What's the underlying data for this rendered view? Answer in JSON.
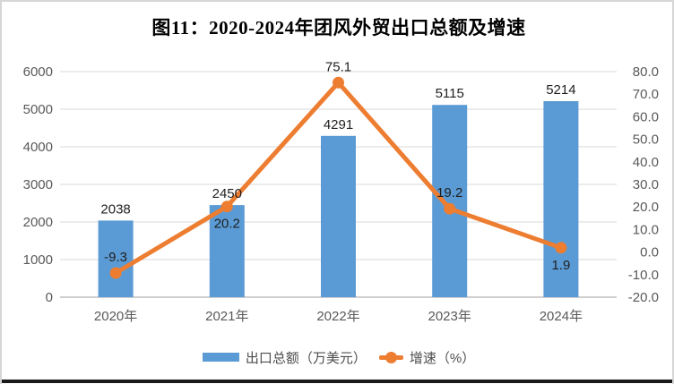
{
  "title": "图11：2020-2024年团风外贸出口总额及增速",
  "chart_data": {
    "type": "bar",
    "subtype": "combo bar+line, dual y-axis",
    "title": "图11：2020-2024年团风外贸出口总额及增速",
    "categories": [
      "2020年",
      "2021年",
      "2022年",
      "2023年",
      "2024年"
    ],
    "series": [
      {
        "name": "出口总额（万美元）",
        "type": "bar",
        "axis": "left",
        "color": "#5B9BD5",
        "values": [
          2038,
          2450,
          4291,
          5115,
          5214
        ],
        "data_labels": [
          "2038",
          "2450",
          "4291",
          "5115",
          "5214"
        ]
      },
      {
        "name": "增速（%）",
        "type": "line",
        "axis": "right",
        "color": "#ED7D31",
        "values": [
          -9.3,
          20.2,
          75.1,
          19.2,
          1.9
        ],
        "data_labels": [
          "-9.3",
          "20.2",
          "75.1",
          "19.2",
          "1.9"
        ],
        "label_sides": [
          "above",
          "below",
          "above",
          "above",
          "below"
        ]
      }
    ],
    "left_axis": {
      "min": 0,
      "max": 6000,
      "step": 1000,
      "tick_labels": [
        "0",
        "1000",
        "2000",
        "3000",
        "4000",
        "5000",
        "6000"
      ]
    },
    "right_axis": {
      "min": -20,
      "max": 80,
      "step": 10,
      "tick_labels": [
        "-20.0",
        "-10.0",
        "0.0",
        "10.0",
        "20.0",
        "30.0",
        "40.0",
        "50.0",
        "60.0",
        "70.0",
        "80.0"
      ]
    },
    "grid": "horizontal gridlines at left-axis major units",
    "legend_position": "bottom"
  },
  "colors": {
    "bar": "#5B9BD5",
    "line": "#ED7D31",
    "gridline": "#D9D9D9",
    "axis_line": "#BFBFBF",
    "tick_label": "#595959",
    "data_label": "#1F1F1F",
    "title": "#000000",
    "frame_border": "#D6D6D6",
    "bottom_rule": "#1A1A1A"
  }
}
